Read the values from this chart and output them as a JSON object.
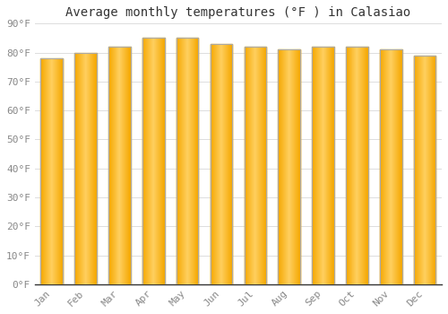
{
  "title": "Average monthly temperatures (°F ) in Calasiao",
  "months": [
    "Jan",
    "Feb",
    "Mar",
    "Apr",
    "May",
    "Jun",
    "Jul",
    "Aug",
    "Sep",
    "Oct",
    "Nov",
    "Dec"
  ],
  "values": [
    78,
    80,
    82,
    85,
    85,
    83,
    82,
    81,
    82,
    82,
    81,
    79
  ],
  "bar_color_center": "#FFD060",
  "bar_color_edge": "#F5A800",
  "bar_edge_color": "#AAAAAA",
  "background_color": "#FFFFFF",
  "grid_color": "#DDDDDD",
  "ylim": [
    0,
    90
  ],
  "yticks": [
    0,
    10,
    20,
    30,
    40,
    50,
    60,
    70,
    80,
    90
  ],
  "title_fontsize": 10,
  "tick_fontsize": 8,
  "bar_width": 0.65
}
